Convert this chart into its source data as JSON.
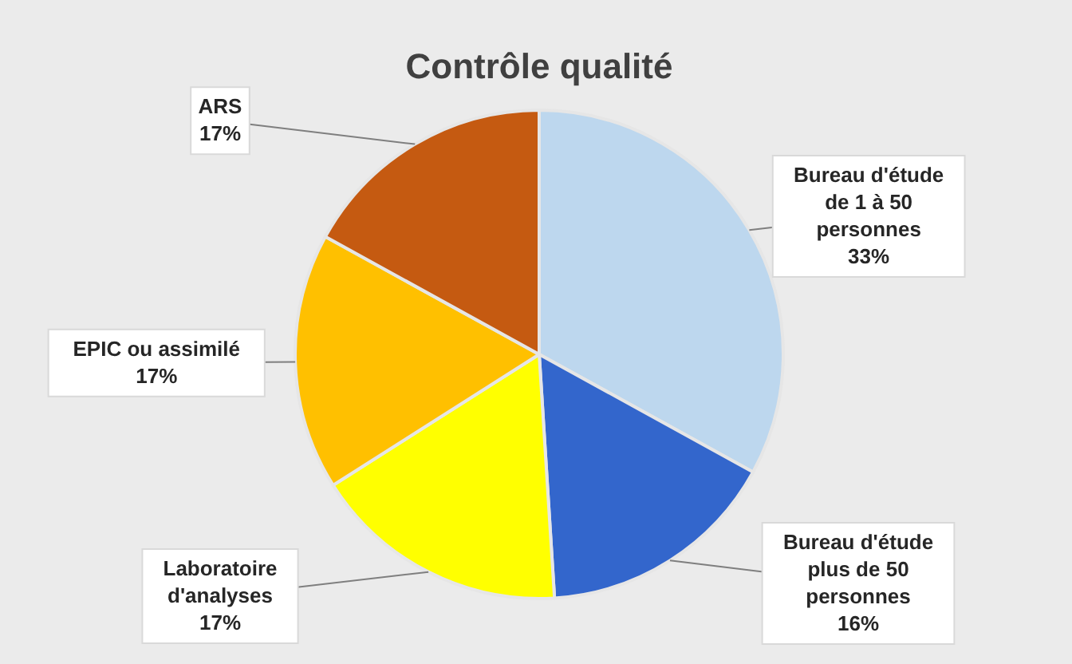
{
  "chart_data": {
    "type": "pie",
    "title": "Contrôle qualité",
    "categories": [
      "Bureau d'étude\nde 1 à 50\npersonnes",
      "Bureau d'étude\nplus de  50\npersonnes",
      "Laboratoire\nd'analyses",
      "EPIC ou assimilé",
      "ARS"
    ],
    "values": [
      33,
      16,
      17,
      17,
      17
    ],
    "colors": [
      "#bdd7ee",
      "#3366cc",
      "#ffff00",
      "#ffc000",
      "#c55a11"
    ],
    "value_labels": [
      "33%",
      "16%",
      "17%",
      "17%",
      "17%"
    ]
  }
}
